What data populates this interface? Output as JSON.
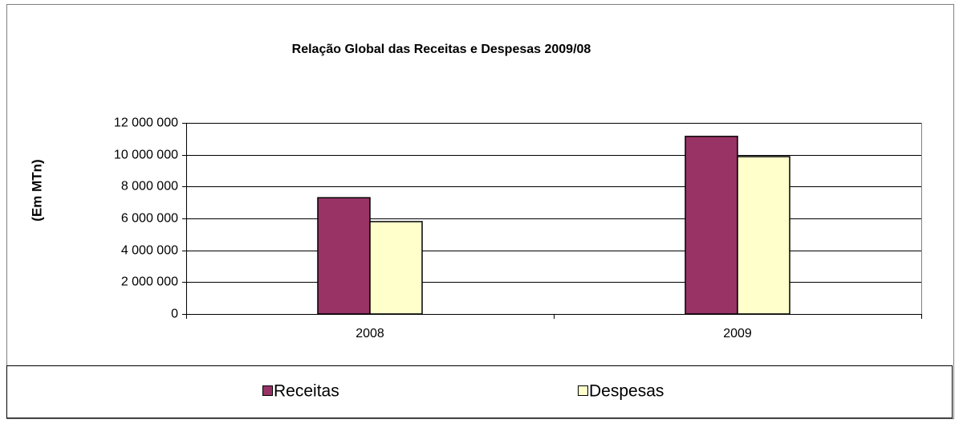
{
  "chart_data": {
    "type": "bar",
    "title": "Relação Global das Receitas e Despesas 2009/08",
    "y_label": "(Em MTn)",
    "categories": [
      "2008",
      "2009"
    ],
    "series": [
      {
        "name": "Receitas",
        "color": "#993366",
        "values": [
          7300000,
          11150000
        ]
      },
      {
        "name": "Despesas",
        "color": "#ffffcc",
        "values": [
          5800000,
          9880000
        ]
      }
    ],
    "ylim": [
      0,
      12000000
    ],
    "yticks": [
      0,
      {
        "value": 2000000,
        "label": "2 000 000"
      },
      {
        "value": 4000000,
        "label": "4 000 000"
      },
      {
        "value": 6000000,
        "label": "6 000 000"
      },
      {
        "value": 8000000,
        "label": "8 000 000"
      },
      {
        "value": 10000000,
        "label": "10 000 000"
      },
      {
        "value": 12000000,
        "label": "12 000 000"
      }
    ],
    "grid": true,
    "legend": "bottom"
  }
}
